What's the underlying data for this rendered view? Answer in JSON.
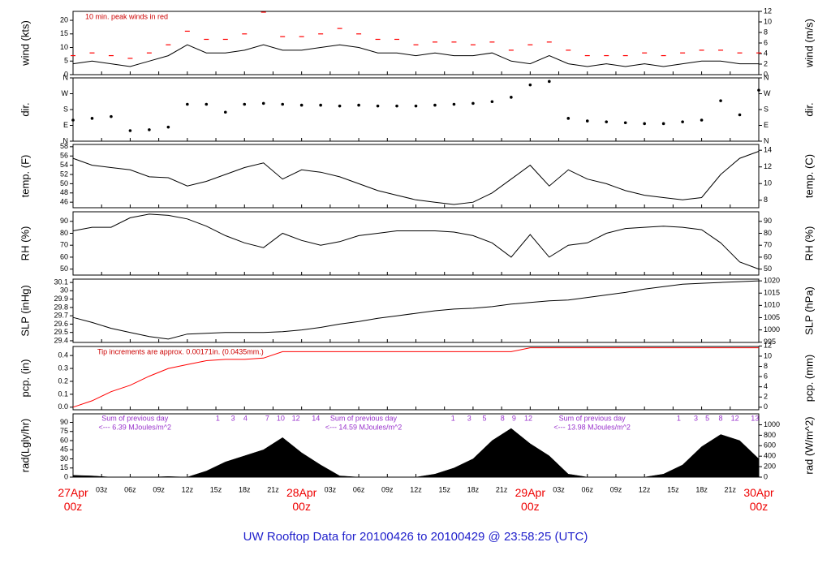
{
  "title": "UW Rooftop Data for 20100426  to  20100429 @ 23:58:25  (UTC)",
  "time_axis": {
    "xlim": [
      0,
      72
    ],
    "x": [
      0,
      2,
      4,
      6,
      8,
      10,
      12,
      14,
      16,
      18,
      20,
      22,
      24,
      26,
      28,
      30,
      32,
      34,
      36,
      38,
      40,
      42,
      44,
      46,
      48,
      50,
      52,
      54,
      56,
      58,
      60,
      62,
      64,
      66,
      68,
      70,
      72
    ],
    "xticks": [
      {
        "value": 0,
        "label": "27Apr 00z"
      },
      {
        "value": 3,
        "label": "03z"
      },
      {
        "value": 6,
        "label": "06z"
      },
      {
        "value": 9,
        "label": "09z"
      },
      {
        "value": 12,
        "label": "12z"
      },
      {
        "value": 15,
        "label": "15z"
      },
      {
        "value": 18,
        "label": "18z"
      },
      {
        "value": 21,
        "label": "21z"
      },
      {
        "value": 24,
        "label": "28Apr 00z"
      },
      {
        "value": 27,
        "label": "03z"
      },
      {
        "value": 30,
        "label": "06z"
      },
      {
        "value": 33,
        "label": "09z"
      },
      {
        "value": 36,
        "label": "12z"
      },
      {
        "value": 39,
        "label": "15z"
      },
      {
        "value": 42,
        "label": "18z"
      },
      {
        "value": 45,
        "label": "21z"
      },
      {
        "value": 48,
        "label": "29Apr 00z"
      },
      {
        "value": 51,
        "label": "03z"
      },
      {
        "value": 54,
        "label": "06z"
      },
      {
        "value": 57,
        "label": "09z"
      },
      {
        "value": 60,
        "label": "12z"
      },
      {
        "value": 63,
        "label": "15z"
      },
      {
        "value": 66,
        "label": "18z"
      },
      {
        "value": 69,
        "label": "21z"
      },
      {
        "value": 72,
        "label": "30Apr 00z"
      }
    ]
  },
  "chart_data": [
    {
      "type": "line",
      "ylabel": "wind (kts)",
      "y2label": "wind (m/s)",
      "note": "10 min. peak winds in red",
      "ylim": [
        0,
        23.3
      ],
      "yticks": [
        0,
        5,
        10,
        15,
        20
      ],
      "y2lim": [
        0,
        12
      ],
      "y2ticks": [
        0,
        2,
        4,
        6,
        8,
        10,
        12
      ],
      "series": [
        {
          "color": "#000000",
          "values": [
            4,
            5,
            4,
            3,
            5,
            7,
            11,
            8,
            8,
            9,
            11,
            9,
            9,
            10,
            11,
            10,
            8,
            8,
            7,
            8,
            7,
            7,
            8,
            5,
            4,
            7,
            4,
            3,
            4,
            3,
            4,
            3,
            4,
            5,
            5,
            4,
            4
          ]
        },
        {
          "color": "#ff0000",
          "marker": "dash",
          "values": [
            7,
            8,
            7,
            6,
            8,
            11,
            16,
            13,
            13,
            15,
            23,
            14,
            14,
            15,
            17,
            15,
            13,
            13,
            11,
            12,
            12,
            11,
            12,
            9,
            11,
            12,
            9,
            7,
            7,
            7,
            8,
            7,
            8,
            9,
            9,
            8,
            8
          ]
        }
      ]
    },
    {
      "type": "scatter",
      "ylabel": "dir.",
      "y2label": "dir.",
      "ylim": [
        0,
        360
      ],
      "yticks": [
        {
          "value": 0,
          "label": "N"
        },
        {
          "value": 90,
          "label": "E"
        },
        {
          "value": 180,
          "label": "S"
        },
        {
          "value": 270,
          "label": "W"
        },
        {
          "value": 360,
          "label": "N"
        }
      ],
      "y2lim": [
        0,
        360
      ],
      "y2ticks": [
        {
          "value": 0,
          "label": "N"
        },
        {
          "value": 90,
          "label": "E"
        },
        {
          "value": 180,
          "label": "S"
        },
        {
          "value": 270,
          "label": "W"
        },
        {
          "value": 360,
          "label": "N"
        }
      ],
      "series": [
        {
          "color": "#000000",
          "values": [
            120,
            130,
            140,
            60,
            65,
            80,
            210,
            210,
            165,
            210,
            215,
            210,
            205,
            205,
            200,
            205,
            200,
            200,
            200,
            205,
            210,
            215,
            225,
            250,
            320,
            340,
            130,
            115,
            110,
            105,
            100,
            100,
            110,
            120,
            230,
            150,
            290
          ]
        }
      ]
    },
    {
      "type": "line",
      "ylabel": "temp. (F)",
      "y2label": "temp. (C)",
      "ylim": [
        44.8,
        58.5
      ],
      "yticks": [
        46,
        48,
        50,
        52,
        54,
        56,
        58
      ],
      "y2lim": [
        7.1,
        14.7
      ],
      "y2ticks": [
        8,
        10,
        12,
        14
      ],
      "series": [
        {
          "color": "#000000",
          "values": [
            55.5,
            54,
            53.5,
            53,
            51.5,
            51.3,
            49.5,
            50.5,
            52,
            53.5,
            54.5,
            51,
            53,
            52.5,
            51.5,
            50,
            48.5,
            47.5,
            46.5,
            46,
            45.5,
            46,
            48,
            51,
            54,
            49.5,
            53,
            51,
            50,
            48.5,
            47.5,
            47,
            46.5,
            47,
            52,
            55.5,
            57
          ]
        }
      ]
    },
    {
      "type": "line",
      "ylabel": "RH (%)",
      "y2label": "RH (%)",
      "ylim": [
        45,
        98
      ],
      "yticks": [
        50,
        60,
        70,
        80,
        90
      ],
      "y2lim": [
        45,
        98
      ],
      "y2ticks": [
        50,
        60,
        70,
        80,
        90
      ],
      "series": [
        {
          "color": "#000000",
          "values": [
            82,
            85,
            85,
            93,
            96,
            95,
            92,
            86,
            78,
            72,
            68,
            80,
            74,
            70,
            73,
            78,
            80,
            82,
            82,
            82,
            81,
            78,
            72,
            60,
            79,
            60,
            70,
            72,
            80,
            84,
            85,
            86,
            85,
            83,
            72,
            56,
            50
          ]
        }
      ]
    },
    {
      "type": "line",
      "ylabel": "SLP (inHg)",
      "y2label": "SLP (hPa)",
      "ylim": [
        29.38,
        30.14
      ],
      "yticks": [
        29.4,
        29.5,
        29.6,
        29.7,
        29.8,
        29.9,
        30.0,
        30.1
      ],
      "y2lim": [
        994.9,
        1020.7
      ],
      "y2ticks": [
        995,
        1000,
        1005,
        1010,
        1015,
        1020
      ],
      "series": [
        {
          "color": "#000000",
          "values": [
            29.68,
            29.62,
            29.55,
            29.5,
            29.45,
            29.42,
            29.48,
            29.49,
            29.5,
            29.5,
            29.5,
            29.51,
            29.53,
            29.56,
            29.6,
            29.63,
            29.67,
            29.7,
            29.73,
            29.76,
            29.78,
            29.79,
            29.81,
            29.84,
            29.86,
            29.88,
            29.89,
            29.92,
            29.95,
            29.98,
            30.02,
            30.05,
            30.08,
            30.09,
            30.1,
            30.11,
            30.12
          ]
        }
      ]
    },
    {
      "type": "line",
      "ylabel": "pcp. (in)",
      "y2label": "pcp. (mm)",
      "note": "Tip increments are approx. 0.00171in. (0.0435mm.)",
      "ylim": [
        -0.02,
        0.47
      ],
      "yticks": [
        {
          "value": 0,
          "label": "0.0"
        },
        0.1,
        0.2,
        0.3,
        0.4
      ],
      "y2lim": [
        -0.5,
        11.9
      ],
      "y2ticks": [
        0,
        2,
        4,
        6,
        8,
        10,
        12
      ],
      "series": [
        {
          "color": "#ff0000",
          "values": [
            0,
            0.05,
            0.12,
            0.17,
            0.24,
            0.3,
            0.33,
            0.36,
            0.37,
            0.37,
            0.38,
            0.43,
            0.43,
            0.43,
            0.43,
            0.43,
            0.43,
            0.43,
            0.43,
            0.43,
            0.43,
            0.43,
            0.43,
            0.43,
            0.46,
            0.46,
            0.46,
            0.46,
            0.46,
            0.46,
            0.46,
            0.46,
            0.46,
            0.46,
            0.46,
            0.46,
            0.46
          ]
        }
      ]
    },
    {
      "type": "area",
      "ylabel": "rad(Lgly/hr)",
      "y2label": "rad (W/m^2)",
      "ylim": [
        0,
        104
      ],
      "yticks": [
        0,
        15,
        30,
        45,
        60,
        75,
        90
      ],
      "y2lim": [
        0,
        1209
      ],
      "y2ticks": [
        0,
        200,
        400,
        600,
        800,
        1000
      ],
      "series": [
        {
          "color": "#000000",
          "values": [
            3,
            2,
            0,
            0,
            0,
            1,
            0,
            10,
            25,
            35,
            45,
            65,
            40,
            20,
            2,
            0,
            0,
            0,
            0,
            5,
            15,
            30,
            60,
            80,
            55,
            35,
            5,
            0,
            0,
            0,
            0,
            5,
            20,
            50,
            70,
            60,
            30
          ]
        }
      ],
      "annotations": [
        [
          "Sum of previous day",
          "<--- 6.39 MJoules/m^2"
        ],
        [
          "Sum of previous day",
          "<--- 14.59 MJoules/m^2"
        ],
        [
          "Sum of previous day",
          "<--- 13.98 MJoules/m^2"
        ]
      ],
      "hour_marks": [
        {
          "x": 15.2,
          "label": "1"
        },
        {
          "x": 16.8,
          "label": "3"
        },
        {
          "x": 18.1,
          "label": "4"
        },
        {
          "x": 20.4,
          "label": "7"
        },
        {
          "x": 21.8,
          "label": "10"
        },
        {
          "x": 23.4,
          "label": "12"
        },
        {
          "x": 25.5,
          "label": "14"
        },
        {
          "x": 39.9,
          "label": "1"
        },
        {
          "x": 41.6,
          "label": "3"
        },
        {
          "x": 43.2,
          "label": "5"
        },
        {
          "x": 45.1,
          "label": "8"
        },
        {
          "x": 46.3,
          "label": "9"
        },
        {
          "x": 47.8,
          "label": "12"
        },
        {
          "x": 63.6,
          "label": "1"
        },
        {
          "x": 65.4,
          "label": "3"
        },
        {
          "x": 66.6,
          "label": "5"
        },
        {
          "x": 68.0,
          "label": "8"
        },
        {
          "x": 69.5,
          "label": "12"
        },
        {
          "x": 71.6,
          "label": "13"
        }
      ]
    }
  ]
}
